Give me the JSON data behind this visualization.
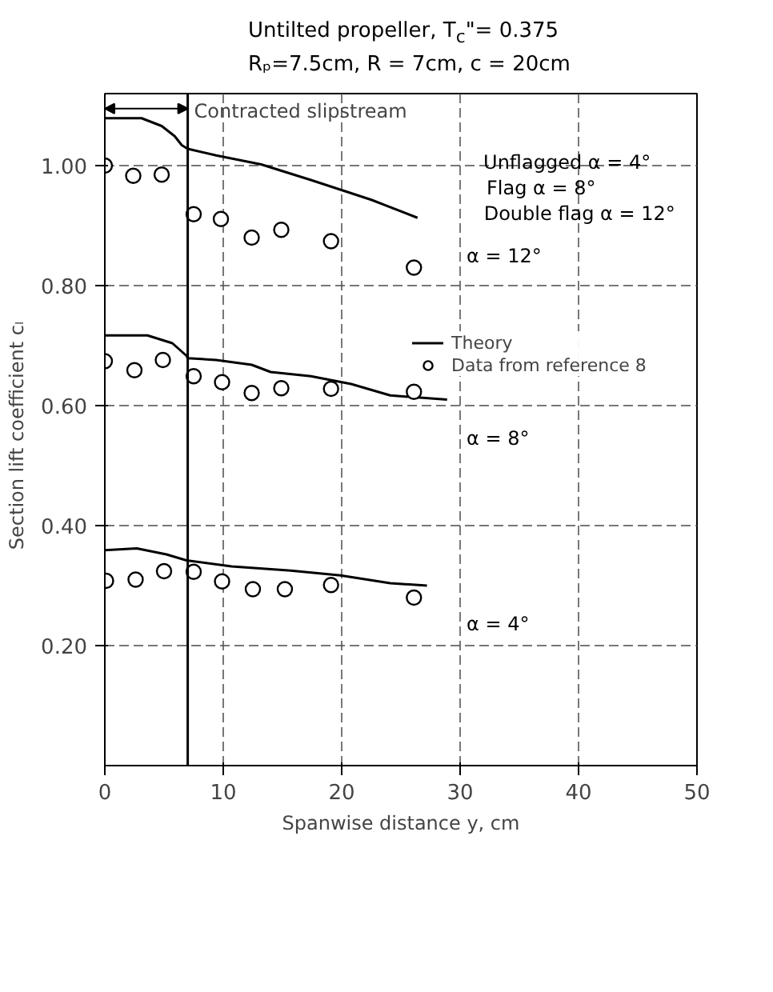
{
  "chart_data": {
    "type": "line",
    "title": "Untilted propeller, T$_{c}$\"= 0.375",
    "subtitle": "Rₚ=7.5cm, R = 7cm, c = 20cm",
    "xlabel": "Spanwise distance y, cm",
    "ylabel": "Section lift coefficient   cₗ",
    "xlim": [
      0,
      50
    ],
    "ylim": [
      0,
      1.12
    ],
    "xticks": [
      0,
      10,
      20,
      30,
      40,
      50
    ],
    "yticks": [
      {
        "value": 0.2,
        "label": "0.20"
      },
      {
        "value": 0.4,
        "label": "0.40"
      },
      {
        "value": 0.6,
        "label": "0.60"
      },
      {
        "value": 0.8,
        "label": "0.80"
      },
      {
        "value": 1.0,
        "label": "1.00"
      }
    ],
    "grid": true,
    "legend": "right",
    "line_style": "solid",
    "series": [
      {
        "name": "Theory",
        "color": "#000000",
        "x": [
          0,
          3.1,
          4.8,
          5.9,
          6.5,
          7.0,
          9.4,
          13.2,
          17.4,
          22.5,
          26.4
        ],
        "values": [
          1.079,
          1.079,
          1.066,
          1.049,
          1.034,
          1.028,
          1.017,
          1.002,
          0.976,
          0.943,
          0.913
        ]
      },
      {
        "color": "#000000",
        "x": [
          0,
          3.6,
          5.7,
          6.9,
          7.0,
          9.4,
          12.4,
          14.0,
          17.4,
          20.8,
          24.1,
          28.9
        ],
        "values": [
          0.717,
          0.717,
          0.704,
          0.683,
          0.679,
          0.676,
          0.668,
          0.656,
          0.649,
          0.636,
          0.617,
          0.61
        ]
      },
      {
        "color": "#000000",
        "x": [
          0,
          2.7,
          5.2,
          6.9,
          10.7,
          15.7,
          19.9,
          24.1,
          27.2
        ],
        "values": [
          0.359,
          0.362,
          0.352,
          0.342,
          0.332,
          0.325,
          0.317,
          0.304,
          0.3
        ]
      },
      {
        "name": "Data from reference 8",
        "type": "scatter",
        "marker": "circle",
        "color": "#000000",
        "x": [
          0,
          2.4,
          4.8,
          7.5,
          9.8,
          12.4,
          14.9,
          19.1,
          26.1
        ],
        "values": [
          1.0,
          0.983,
          0.985,
          0.919,
          0.911,
          0.88,
          0.893,
          0.874,
          0.83
        ]
      },
      {
        "type": "scatter",
        "marker": "circle",
        "color": "#000000",
        "x": [
          0,
          2.5,
          4.9,
          7.5,
          9.9,
          12.4,
          14.9,
          19.1,
          26.1
        ],
        "values": [
          0.674,
          0.659,
          0.676,
          0.649,
          0.639,
          0.621,
          0.629,
          0.628,
          0.623
        ]
      },
      {
        "type": "scatter",
        "marker": "circle",
        "color": "#000000",
        "x": [
          0.1,
          2.6,
          5.0,
          7.5,
          9.9,
          12.5,
          15.2,
          19.1,
          26.1
        ],
        "values": [
          0.308,
          0.31,
          0.324,
          0.323,
          0.307,
          0.294,
          0.294,
          0.301,
          0.28
        ]
      }
    ],
    "ref_lines": [
      {
        "axis": "x",
        "value": 7,
        "label": "Contracted slipstream",
        "color": "#000000",
        "line_style": "solid"
      }
    ],
    "annotations": [
      "Unflagged      α =  4°",
      "Flag               α =  8°",
      "Double flag   α = 12°",
      "α  =  12°",
      "α  =  8°",
      "α  =  4°"
    ]
  }
}
